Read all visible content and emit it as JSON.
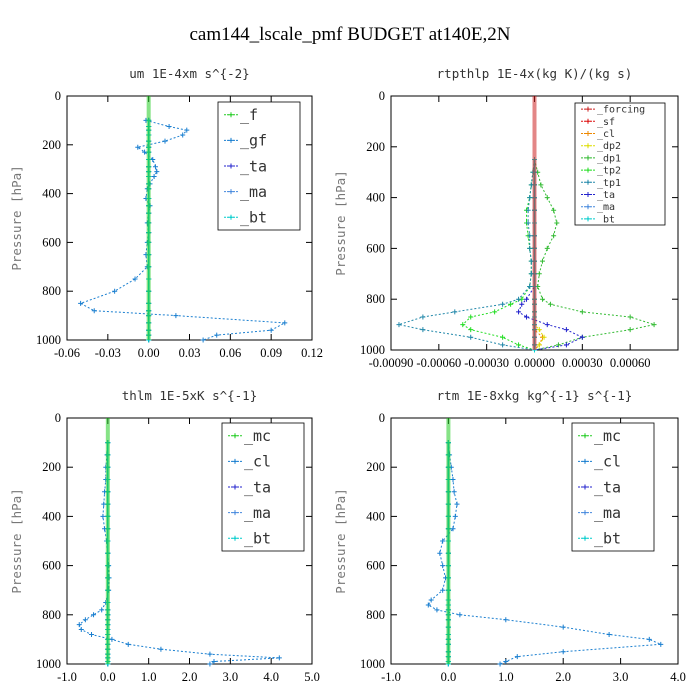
{
  "figure_title": "cam144_lscale_pmf  BUDGET at140E,2N",
  "chart_data": [
    {
      "type": "line",
      "title": "um  1E-4xm s^{-2}",
      "ylabel": "Pressure [hPa]",
      "xlim": [
        -0.06,
        0.12
      ],
      "ylim": [
        1000,
        0
      ],
      "xticks": [
        "-0.06",
        "-0.03",
        "0.00",
        "0.03",
        "0.06",
        "0.09",
        "0.12"
      ],
      "yticks": [
        "0",
        "200",
        "400",
        "600",
        "800",
        "1000"
      ],
      "legend_position": "top-right",
      "y": [
        100,
        125,
        140,
        160,
        185,
        210,
        230,
        260,
        290,
        310,
        330,
        360,
        380,
        420,
        450,
        480,
        520,
        560,
        600,
        650,
        700,
        750,
        800,
        850,
        880,
        900,
        930,
        960,
        980,
        1000
      ],
      "series": [
        {
          "name": "_f",
          "color": "#22cc22",
          "values": [
            0,
            0,
            0,
            0,
            0,
            0,
            0,
            0,
            0,
            0,
            0,
            0,
            0,
            0,
            0,
            0,
            0,
            0,
            0,
            0,
            0,
            0,
            0,
            0,
            0,
            0,
            0,
            0,
            0,
            0
          ]
        },
        {
          "name": "_gf",
          "color": "#1a7fd0",
          "values": [
            -0.002,
            0.015,
            0.028,
            0.025,
            0.012,
            -0.008,
            -0.003,
            0.003,
            0.005,
            0.006,
            0.004,
            0.001,
            -0.001,
            -0.002,
            0.001,
            0.0,
            -0.001,
            0.0,
            -0.001,
            -0.002,
            -0.001,
            -0.01,
            -0.025,
            -0.05,
            -0.04,
            0.02,
            0.1,
            0.09,
            0.05,
            0.04
          ]
        },
        {
          "name": "_ta",
          "color": "#2222cc",
          "values": [
            0,
            0,
            0,
            0,
            0,
            0,
            0,
            0,
            0,
            0,
            0,
            0,
            0,
            0,
            0,
            0,
            0,
            0,
            0,
            0,
            0,
            0,
            0,
            0,
            0,
            0,
            0,
            0,
            0,
            0
          ]
        },
        {
          "name": "_ma",
          "color": "#4488dd",
          "values": [
            0,
            0,
            0,
            0,
            0,
            0,
            0,
            0,
            0,
            0,
            0,
            0,
            0,
            0,
            0,
            0,
            0,
            0,
            0,
            0,
            0,
            0,
            0,
            0,
            0,
            0,
            0,
            0,
            0,
            0
          ]
        },
        {
          "name": "_bt",
          "color": "#00cccc",
          "values": [
            0,
            0,
            0,
            0,
            0,
            0,
            0,
            0,
            0,
            0,
            0,
            0,
            0,
            0,
            0,
            0,
            0,
            0,
            0,
            0,
            0,
            0,
            0,
            0,
            0,
            0,
            0,
            0,
            0,
            0
          ]
        }
      ]
    },
    {
      "type": "line",
      "title": "rtpthlp  1E-4x(kg K)/(kg s)",
      "ylabel": "Pressure [hPa]",
      "xlim": [
        -0.0009,
        0.0009
      ],
      "ylim": [
        1000,
        0
      ],
      "xticks": [
        "-0.00090",
        "-0.00060",
        "-0.00030",
        "0.00000",
        "0.00030",
        "0.00060",
        ""
      ],
      "yticks": [
        "0",
        "200",
        "400",
        "600",
        "800",
        "1000"
      ],
      "legend_position": "top-right",
      "y": [
        250,
        300,
        350,
        400,
        450,
        500,
        550,
        600,
        650,
        700,
        750,
        800,
        820,
        850,
        870,
        900,
        920,
        950,
        980,
        1000
      ],
      "series": [
        {
          "name": "_forcing",
          "color": "#cc2222",
          "values": [
            0,
            0,
            0,
            0,
            0,
            0,
            0,
            0,
            0,
            0,
            0,
            0,
            0,
            0,
            0,
            0,
            0,
            0,
            0,
            0
          ]
        },
        {
          "name": "_sf",
          "color": "#dd1111",
          "values": [
            0,
            0,
            0,
            0,
            0,
            0,
            0,
            0,
            0,
            0,
            0,
            0,
            0,
            0,
            0,
            0,
            0,
            0,
            0,
            0
          ]
        },
        {
          "name": "_cl",
          "color": "#ee8800",
          "values": [
            0,
            0,
            0,
            0,
            0,
            0,
            0,
            0,
            0,
            0,
            0,
            0,
            0,
            0,
            0,
            0,
            0,
            5e-05,
            3e-05,
            0
          ]
        },
        {
          "name": "_dp2",
          "color": "#dddd00",
          "values": [
            0,
            0,
            0,
            0,
            0,
            0,
            0,
            0,
            0,
            0,
            0,
            0,
            0,
            0,
            0,
            0,
            3e-05,
            6e-05,
            3e-05,
            0
          ]
        },
        {
          "name": "_dp1",
          "color": "#33bb33",
          "values": [
            0,
            2e-05,
            4e-05,
            8e-05,
            0.00012,
            0.00014,
            0.00012,
            8e-05,
            5e-05,
            3e-05,
            2e-05,
            5e-05,
            0.0001,
            0.0003,
            0.0006,
            0.00075,
            0.0006,
            0.0003,
            0.00015,
            0
          ]
        },
        {
          "name": "_tp2",
          "color": "#22dd22",
          "values": [
            0,
            -1e-05,
            -2e-05,
            -3e-05,
            -5e-05,
            -5e-05,
            -4e-05,
            -3e-05,
            -2e-05,
            -2e-05,
            -3e-05,
            -8e-05,
            -0.00015,
            -0.00025,
            -0.0004,
            -0.00045,
            -0.0004,
            -0.0002,
            -0.0001,
            0
          ]
        },
        {
          "name": "_tp1",
          "color": "#2288aa",
          "values": [
            0,
            -1e-05,
            -2e-05,
            -3e-05,
            -4e-05,
            -4e-05,
            -3e-05,
            -3e-05,
            -2e-05,
            -2e-05,
            -3e-05,
            -0.0001,
            -0.0002,
            -0.0005,
            -0.0007,
            -0.00085,
            -0.0007,
            -0.0004,
            -0.0002,
            0
          ]
        },
        {
          "name": "_ta",
          "color": "#2222cc",
          "values": [
            0,
            0,
            0,
            0,
            0,
            0,
            0,
            0,
            0,
            0,
            0,
            -5e-05,
            -8e-05,
            -0.0001,
            -5e-05,
            8e-05,
            0.0002,
            0.0003,
            0.0002,
            0
          ]
        },
        {
          "name": "_ma",
          "color": "#4488dd",
          "values": [
            0,
            0,
            0,
            0,
            0,
            0,
            0,
            0,
            0,
            0,
            0,
            0,
            0,
            0,
            0,
            0,
            0,
            0,
            0,
            0
          ]
        },
        {
          "name": "_bt",
          "color": "#00cccc",
          "values": [
            0,
            0,
            0,
            0,
            0,
            0,
            0,
            0,
            0,
            0,
            0,
            0,
            0,
            0,
            0,
            0,
            0,
            0,
            0,
            0
          ]
        }
      ]
    },
    {
      "type": "line",
      "title": "thlm  1E-5xK s^{-1}",
      "ylabel": "Pressure [hPa]",
      "xlim": [
        -1.0,
        5.0
      ],
      "ylim": [
        1000,
        0
      ],
      "xticks": [
        "-1.0",
        "0.0",
        "1.0",
        "2.0",
        "3.0",
        "4.0",
        "5.0"
      ],
      "yticks": [
        "0",
        "200",
        "400",
        "600",
        "800",
        "1000"
      ],
      "legend_position": "top-right",
      "y": [
        100,
        150,
        200,
        250,
        300,
        350,
        400,
        450,
        500,
        550,
        600,
        650,
        700,
        750,
        780,
        800,
        820,
        840,
        860,
        880,
        900,
        920,
        940,
        960,
        975,
        990,
        1000
      ],
      "series": [
        {
          "name": "_mc",
          "color": "#22cc22",
          "values": [
            0,
            0,
            0,
            0,
            0,
            0,
            0,
            0,
            0,
            0,
            0,
            0,
            0,
            0,
            0,
            0,
            0,
            0,
            0,
            0,
            0,
            0,
            0,
            0,
            0,
            0,
            0
          ]
        },
        {
          "name": "_cl",
          "color": "#1a7fd0",
          "values": [
            0,
            -0.02,
            -0.05,
            -0.05,
            -0.08,
            -0.1,
            -0.12,
            -0.08,
            -0.03,
            0.0,
            0.02,
            0.03,
            0.02,
            -0.05,
            -0.15,
            -0.35,
            -0.55,
            -0.7,
            -0.65,
            -0.4,
            0.1,
            0.5,
            1.3,
            2.5,
            4.2,
            2.6,
            2.5
          ]
        },
        {
          "name": "_ta",
          "color": "#2222cc",
          "values": [
            0,
            0,
            0,
            0,
            0,
            0,
            0,
            0,
            0,
            0,
            0,
            0,
            0,
            0,
            0,
            0,
            0,
            0,
            0,
            0,
            0,
            0,
            0,
            0,
            0,
            0,
            0
          ]
        },
        {
          "name": "_ma",
          "color": "#4488dd",
          "values": [
            0,
            0,
            0,
            0,
            0,
            0,
            0,
            0,
            0,
            0,
            0,
            0,
            0,
            0,
            0,
            0,
            0,
            0,
            0,
            0,
            0,
            0,
            0,
            0,
            0,
            0,
            0
          ]
        },
        {
          "name": "_bt",
          "color": "#00cccc",
          "values": [
            0,
            0,
            0,
            0,
            0,
            0,
            0,
            0,
            0,
            0,
            0,
            0,
            0,
            0,
            0,
            0,
            0,
            0,
            0,
            0,
            0,
            0,
            0,
            0,
            0,
            0,
            0
          ]
        }
      ]
    },
    {
      "type": "line",
      "title": "rtm  1E-8xkg kg^{-1} s^{-1}",
      "ylabel": "Pressure [hPa]",
      "xlim": [
        -1.0,
        4.0
      ],
      "ylim": [
        1000,
        0
      ],
      "xticks": [
        "-1.0",
        "0.0",
        "1.0",
        "2.0",
        "3.0",
        "4.0"
      ],
      "yticks": [
        "0",
        "200",
        "400",
        "600",
        "800",
        "1000"
      ],
      "legend_position": "top-right",
      "y": [
        100,
        150,
        200,
        250,
        300,
        350,
        400,
        450,
        500,
        550,
        600,
        650,
        700,
        740,
        760,
        780,
        800,
        820,
        850,
        880,
        900,
        920,
        950,
        970,
        990,
        1000
      ],
      "series": [
        {
          "name": "_mc",
          "color": "#22cc22",
          "values": [
            0,
            0,
            0,
            0,
            0,
            0,
            0,
            0,
            0,
            0,
            0,
            0,
            0,
            0,
            0,
            0,
            0,
            0,
            0,
            0,
            0,
            0,
            0,
            0,
            0,
            0
          ]
        },
        {
          "name": "_cl",
          "color": "#1a7fd0",
          "values": [
            0,
            0.02,
            0.05,
            0.08,
            0.1,
            0.15,
            0.12,
            0.08,
            -0.1,
            -0.15,
            -0.1,
            -0.05,
            -0.1,
            -0.3,
            -0.35,
            -0.2,
            0.2,
            1.0,
            2.0,
            2.8,
            3.5,
            3.7,
            2.0,
            1.2,
            1.0,
            0.9
          ]
        },
        {
          "name": "_ta",
          "color": "#2222cc",
          "values": [
            0,
            0,
            0,
            0,
            0,
            0,
            0,
            0,
            0,
            0,
            0,
            0,
            0,
            0,
            0,
            0,
            0,
            0,
            0,
            0,
            0,
            0,
            0,
            0,
            0,
            0
          ]
        },
        {
          "name": "_ma",
          "color": "#4488dd",
          "values": [
            0,
            0,
            0,
            0,
            0,
            0,
            0,
            0,
            0,
            0,
            0,
            0,
            0,
            0,
            0,
            0,
            0,
            0,
            0,
            0,
            0,
            0,
            0,
            0,
            0,
            0
          ]
        },
        {
          "name": "_bt",
          "color": "#00cccc",
          "values": [
            0,
            0,
            0,
            0,
            0,
            0,
            0,
            0,
            0,
            0,
            0,
            0,
            0,
            0,
            0,
            0,
            0,
            0,
            0,
            0,
            0,
            0,
            0,
            0,
            0,
            0
          ]
        }
      ]
    }
  ]
}
